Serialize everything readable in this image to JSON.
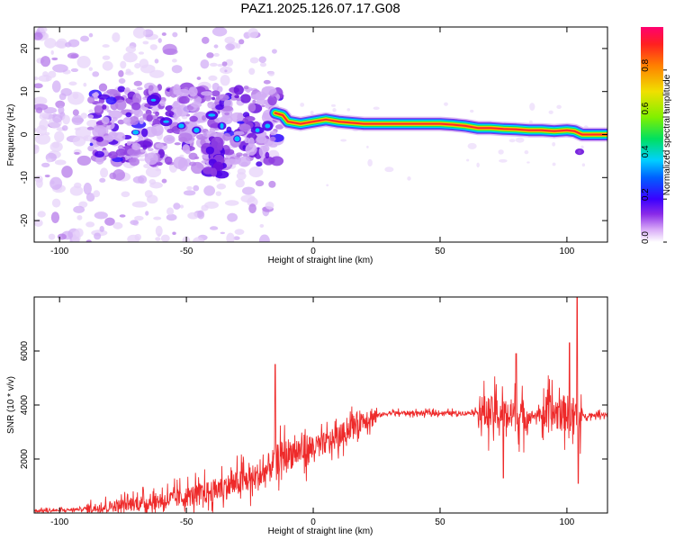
{
  "title": "PAZ1.2025.126.07.17.G08",
  "chart_data": [
    {
      "type": "heatmap",
      "xlabel": "Height of straight line (km)",
      "ylabel": "Frequency (Hz)",
      "xlim": [
        -110,
        116
      ],
      "ylim": [
        -25,
        25
      ],
      "xticks": [
        -100,
        -50,
        0,
        50,
        100
      ],
      "yticks": [
        -20,
        -10,
        0,
        10,
        20
      ],
      "colorbar": {
        "label": "Normalized spectral amplitude",
        "range": [
          0,
          1
        ],
        "ticks": [
          "0.0",
          "0.2",
          "0.4",
          "0.6",
          "0.8"
        ],
        "colors": [
          "#ffffff",
          "#c98cf0",
          "#7a1fe0",
          "#3a00ff",
          "#0060ff",
          "#00d0ff",
          "#00e060",
          "#80f000",
          "#f0e000",
          "#ff8000",
          "#ff2020",
          "#ff0070"
        ]
      },
      "ridge": {
        "x": [
          -15,
          -12,
          -10,
          -5,
          0,
          5,
          10,
          20,
          30,
          40,
          50,
          55,
          60,
          65,
          70,
          75,
          80,
          85,
          90,
          95,
          100,
          103,
          106,
          110,
          116
        ],
        "y": [
          5.0,
          4.5,
          3.0,
          2.5,
          3.0,
          3.5,
          3.0,
          2.5,
          2.5,
          2.5,
          2.5,
          2.3,
          2.0,
          1.5,
          1.5,
          1.3,
          1.2,
          1.0,
          1.0,
          0.8,
          1.0,
          0.8,
          0.0,
          0.0,
          0.0
        ]
      },
      "noise_region_x": [
        -110,
        -15
      ]
    },
    {
      "type": "line",
      "xlabel": "Height of straight line (km)",
      "ylabel": "SNR (10 * v/v)",
      "xlim": [
        -110,
        116
      ],
      "ylim": [
        0,
        8000
      ],
      "xticks": [
        -100,
        -50,
        0,
        50,
        100
      ],
      "yticks": [
        2000,
        4000,
        6000
      ],
      "color": "#ee2a2a",
      "series": [
        {
          "x": [
            -110,
            -100,
            -90,
            -80,
            -70,
            -60,
            -50,
            -40,
            -30,
            -20,
            -16,
            -14,
            -10,
            -5,
            0,
            5,
            10,
            15,
            20,
            25,
            30,
            40,
            50,
            60,
            65,
            70,
            75,
            80,
            85,
            90,
            95,
            100,
            103,
            105,
            108,
            112,
            116
          ],
          "y": [
            80,
            100,
            150,
            250,
            350,
            450,
            600,
            800,
            1100,
            1400,
            1800,
            2000,
            2200,
            2300,
            2400,
            2600,
            2800,
            3200,
            3500,
            3600,
            3700,
            3700,
            3700,
            3700,
            3750,
            3700,
            3650,
            3600,
            3600,
            3650,
            3700,
            3700,
            3650,
            3600,
            3600,
            3650,
            3650
          ]
        }
      ],
      "spikes": [
        {
          "x": -15,
          "y": 5500
        },
        {
          "x": 104,
          "y": 8000
        },
        {
          "x": 101,
          "y": 6300
        },
        {
          "x": 80,
          "y": 5900
        },
        {
          "x": 104.5,
          "y": 1100
        },
        {
          "x": 75,
          "y": 1300
        }
      ]
    }
  ]
}
